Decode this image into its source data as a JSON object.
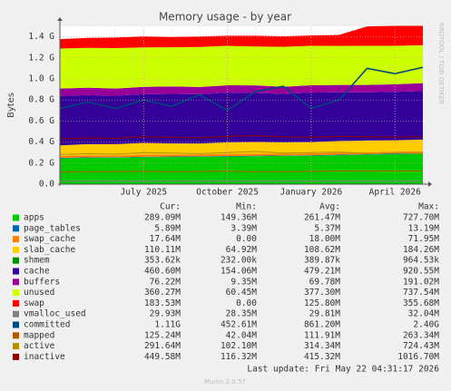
{
  "chart_data": {
    "type": "area",
    "title": "Memory usage - by year",
    "y_label": "Bytes",
    "side_label": "RRDTOOL / TOBI OETIKER",
    "footer": "Last update: Fri May 22 04:31:17 2026",
    "version": "Munin 2.0.57",
    "stat_headers": [
      "Cur:",
      "Min:",
      "Avg:",
      "Max:"
    ],
    "grid": true,
    "ylim": [
      0,
      1500000000
    ],
    "yticks": [
      {
        "value": 0,
        "label": "0.0"
      },
      {
        "value": 200000000,
        "label": "0.2 G"
      },
      {
        "value": 400000000,
        "label": "0.4 G"
      },
      {
        "value": 600000000,
        "label": "0.6 G"
      },
      {
        "value": 800000000,
        "label": "0.8 G"
      },
      {
        "value": 1000000000,
        "label": "1.0 G"
      },
      {
        "value": 1200000000,
        "label": "1.2 G"
      },
      {
        "value": 1400000000,
        "label": "1.4 G"
      }
    ],
    "categories": [
      null,
      null,
      null,
      "July 2025",
      null,
      null,
      "October 2025",
      null,
      null,
      "January 2026",
      null,
      null,
      "April 2026",
      null
    ],
    "series": [
      {
        "name": "apps",
        "color": "#00cc00",
        "kind": "area",
        "stats": [
          "289.09M",
          "149.36M",
          "261.47M",
          "727.70M"
        ],
        "values": [
          245000000,
          250000000,
          252000000,
          255000000,
          258000000,
          260000000,
          262000000,
          265000000,
          268000000,
          270000000,
          275000000,
          280000000,
          285000000,
          289000000
        ]
      },
      {
        "name": "page_tables",
        "color": "#0066b3",
        "kind": "area",
        "stats": [
          "5.89M",
          "3.39M",
          "5.37M",
          "13.19M"
        ],
        "values": [
          5000000,
          5000000,
          5000000,
          5000000,
          5000000,
          5000000,
          5000000,
          5000000,
          5000000,
          5000000,
          5000000,
          5000000,
          6000000,
          6000000
        ]
      },
      {
        "name": "swap_cache",
        "color": "#ff8000",
        "kind": "area",
        "stats": [
          "17.64M",
          "0.00",
          "18.00M",
          "71.95M"
        ],
        "values": [
          18000000,
          20000000,
          15000000,
          22000000,
          18000000,
          17000000,
          20000000,
          19000000,
          16000000,
          18000000,
          20000000,
          17000000,
          18000000,
          18000000
        ]
      },
      {
        "name": "slab_cache",
        "color": "#ffcc00",
        "kind": "area",
        "stats": [
          "110.11M",
          "64.92M",
          "108.62M",
          "184.26M"
        ],
        "values": [
          100000000,
          105000000,
          108000000,
          110000000,
          106000000,
          104000000,
          110000000,
          112000000,
          108000000,
          106000000,
          110000000,
          112000000,
          108000000,
          110000000
        ]
      },
      {
        "name": "shmem",
        "color": "#008f00",
        "kind": "area",
        "stats": [
          "353.62k",
          "232.00k",
          "389.87k",
          "964.53k"
        ],
        "values": [
          380000,
          390000,
          390000,
          400000,
          390000,
          385000,
          390000,
          395000,
          390000,
          380000,
          390000,
          385000,
          360000,
          354000
        ]
      },
      {
        "name": "cache",
        "color": "#330099",
        "kind": "area",
        "stats": [
          "460.60M",
          "154.06M",
          "479.21M",
          "920.55M"
        ],
        "values": [
          470000000,
          465000000,
          460000000,
          462000000,
          470000000,
          468000000,
          472000000,
          465000000,
          460000000,
          470000000,
          462000000,
          458000000,
          460000000,
          461000000
        ]
      },
      {
        "name": "buffers",
        "color": "#990099",
        "kind": "area",
        "stats": [
          "76.22M",
          "9.35M",
          "69.78M",
          "191.02M"
        ],
        "values": [
          70000000,
          72000000,
          68000000,
          70000000,
          71000000,
          69000000,
          70000000,
          72000000,
          68000000,
          70000000,
          71000000,
          70000000,
          72000000,
          76000000
        ]
      },
      {
        "name": "unused",
        "color": "#ccff00",
        "kind": "area",
        "stats": [
          "360.27M",
          "60.45M",
          "377.30M",
          "737.54M"
        ],
        "values": [
          380000000,
          378000000,
          385000000,
          375000000,
          372000000,
          380000000,
          375000000,
          370000000,
          380000000,
          375000000,
          370000000,
          372000000,
          365000000,
          360000000
        ]
      },
      {
        "name": "swap",
        "color": "#ff0000",
        "kind": "area",
        "stats": [
          "183.53M",
          "0.00",
          "125.80M",
          "355.68M"
        ],
        "values": [
          90000000,
          95000000,
          100000000,
          105000000,
          98000000,
          100000000,
          96000000,
          102000000,
          100000000,
          98000000,
          105000000,
          185000000,
          190000000,
          184000000
        ]
      },
      {
        "name": "vmalloc_used",
        "color": "#808080",
        "kind": "line",
        "stats": [
          "29.93M",
          "28.35M",
          "29.81M",
          "32.04M"
        ],
        "values": [
          29000000,
          29000000,
          30000000,
          30000000,
          29000000,
          30000000,
          29000000,
          30000000,
          30000000,
          29000000,
          30000000,
          30000000,
          30000000,
          30000000
        ]
      },
      {
        "name": "committed",
        "color": "#00487d",
        "kind": "line",
        "stats": [
          "1.11G",
          "452.61M",
          "861.20M",
          "2.40G"
        ],
        "values": [
          720000000,
          780000000,
          720000000,
          800000000,
          740000000,
          850000000,
          700000000,
          880000000,
          930000000,
          720000000,
          800000000,
          1100000000,
          1050000000,
          1110000000
        ]
      },
      {
        "name": "mapped",
        "color": "#b35a00",
        "kind": "line",
        "stats": [
          "125.24M",
          "42.04M",
          "111.91M",
          "263.34M"
        ],
        "values": [
          115000000,
          118000000,
          120000000,
          122000000,
          118000000,
          120000000,
          125000000,
          118000000,
          120000000,
          122000000,
          125000000,
          124000000,
          126000000,
          125000000
        ]
      },
      {
        "name": "active",
        "color": "#b38f00",
        "kind": "line",
        "stats": [
          "291.64M",
          "102.10M",
          "314.34M",
          "724.43M"
        ],
        "values": [
          280000000,
          290000000,
          285000000,
          300000000,
          295000000,
          290000000,
          300000000,
          310000000,
          295000000,
          300000000,
          305000000,
          290000000,
          295000000,
          292000000
        ]
      },
      {
        "name": "inactive",
        "color": "#8f0000",
        "kind": "line",
        "stats": [
          "449.58M",
          "116.32M",
          "415.32M",
          "1016.70M"
        ],
        "values": [
          430000000,
          440000000,
          435000000,
          450000000,
          445000000,
          440000000,
          455000000,
          460000000,
          450000000,
          445000000,
          455000000,
          450000000,
          448000000,
          450000000
        ]
      }
    ]
  }
}
